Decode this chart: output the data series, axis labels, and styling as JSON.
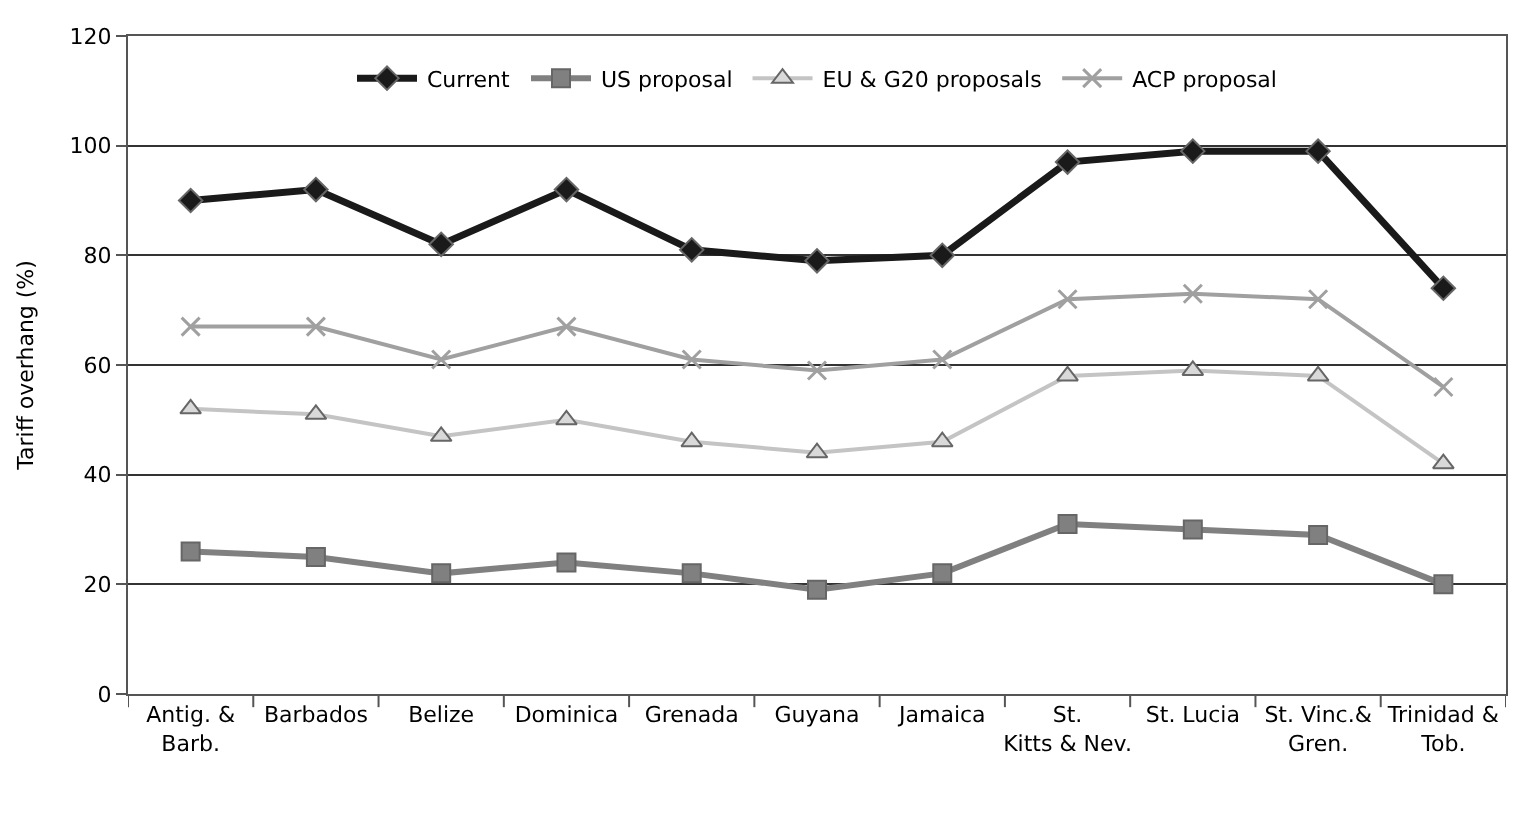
{
  "chart_data": {
    "type": "line",
    "ylabel": "Tariff overhang (%)",
    "categories": [
      "Antig. &\nBarb.",
      "Barbados",
      "Belize",
      "Dominica",
      "Grenada",
      "Guyana",
      "Jamaica",
      "St.\nKitts & Nev.",
      "St. Lucia",
      "St. Vinc.&\nGren.",
      "Trinidad &\nTob."
    ],
    "series": [
      {
        "name": "Current",
        "color": "#1a1a1a",
        "marker": "diamond",
        "values": [
          90,
          92,
          82,
          92,
          81,
          79,
          80,
          97,
          99,
          99,
          74
        ]
      },
      {
        "name": "US proposal",
        "color": "#808080",
        "marker": "square",
        "values": [
          26,
          25,
          22,
          24,
          22,
          19,
          22,
          31,
          30,
          29,
          20
        ]
      },
      {
        "name": "EU & G20 proposals",
        "color": "#c4c4c4",
        "marker": "triangle",
        "values": [
          52,
          51,
          47,
          50,
          46,
          44,
          46,
          58,
          59,
          58,
          42
        ]
      },
      {
        "name": "ACP proposal",
        "color": "#a0a0a0",
        "marker": "cross",
        "values": [
          67,
          67,
          61,
          67,
          61,
          59,
          61,
          72,
          73,
          72,
          56
        ]
      }
    ],
    "ylim": [
      0,
      120
    ],
    "yticks": [
      0,
      20,
      40,
      60,
      80,
      100,
      120
    ],
    "grid": "y",
    "legend": "top",
    "line_style": "solid"
  }
}
